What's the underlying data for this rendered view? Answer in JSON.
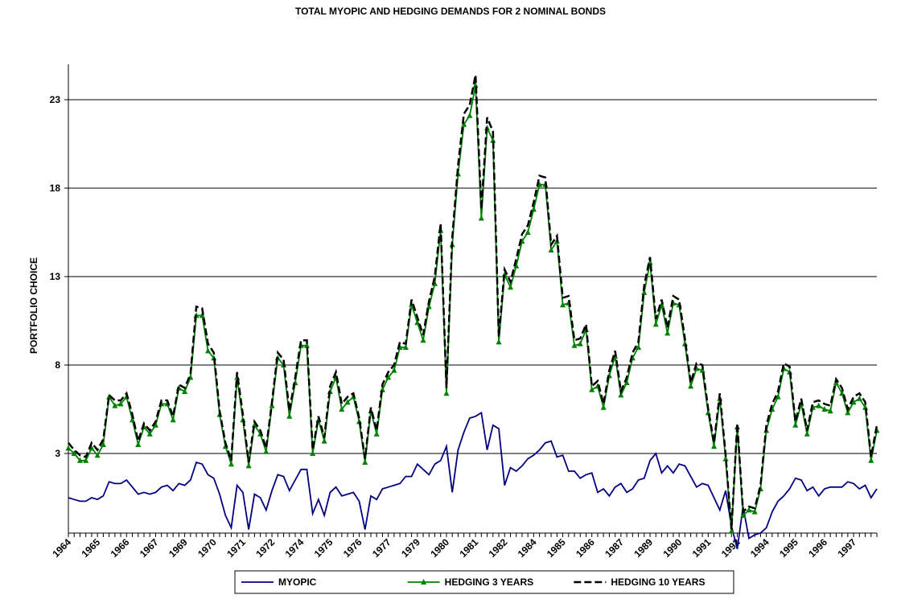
{
  "chart_data": {
    "type": "line",
    "title": "TOTAL MYOPIC AND HEDGING DEMANDS FOR 2 NOMINAL BONDS",
    "y_label": "PORTFOLIO CHOICE",
    "categories": [
      "1964",
      null,
      null,
      null,
      null,
      "1965",
      null,
      null,
      null,
      null,
      "1966",
      null,
      null,
      null,
      null,
      "1967",
      null,
      null,
      null,
      null,
      "1969",
      null,
      null,
      null,
      null,
      "1970",
      null,
      null,
      null,
      null,
      "1971",
      null,
      null,
      null,
      null,
      "1972",
      null,
      null,
      null,
      null,
      "1974",
      null,
      null,
      null,
      null,
      "1975",
      null,
      null,
      null,
      null,
      "1976",
      null,
      null,
      null,
      null,
      "1977",
      null,
      null,
      null,
      null,
      "1979",
      null,
      null,
      null,
      null,
      "1980",
      null,
      null,
      null,
      null,
      "1981",
      null,
      null,
      null,
      null,
      "1982",
      null,
      null,
      null,
      null,
      "1984",
      null,
      null,
      null,
      null,
      "1985",
      null,
      null,
      null,
      null,
      "1986",
      null,
      null,
      null,
      null,
      "1987",
      null,
      null,
      null,
      null,
      "1989",
      null,
      null,
      null,
      null,
      "1990",
      null,
      null,
      null,
      null,
      "1991",
      null,
      null,
      null,
      null,
      "1992",
      null,
      null,
      null,
      null,
      "1994",
      null,
      null,
      null,
      null,
      "1995",
      null,
      null,
      null,
      null,
      "1996",
      null,
      null,
      null,
      null,
      "1997",
      null,
      null,
      null,
      null
    ],
    "series": [
      {
        "name": "MYOPIC",
        "color": "#000080",
        "style": "solid",
        "values": [
          0.5,
          0.4,
          0.3,
          0.3,
          0.5,
          0.4,
          0.6,
          1.4,
          1.3,
          1.3,
          1.5,
          1.1,
          0.7,
          0.8,
          0.7,
          0.8,
          1.1,
          1.2,
          0.9,
          1.3,
          1.2,
          1.5,
          2.5,
          2.4,
          1.8,
          1.6,
          0.7,
          -0.5,
          -1.2,
          1.2,
          0.8,
          -1.3,
          0.7,
          0.5,
          -0.2,
          0.9,
          1.8,
          1.7,
          0.9,
          1.5,
          2.1,
          2.1,
          -0.4,
          0.4,
          -0.5,
          0.8,
          1.1,
          0.6,
          0.7,
          0.8,
          0.3,
          -1.3,
          0.6,
          0.4,
          1.0,
          1.1,
          1.2,
          1.3,
          1.7,
          1.7,
          2.4,
          2.1,
          1.8,
          2.4,
          2.6,
          3.4,
          0.8,
          3.2,
          4.2,
          5.0,
          5.1,
          5.3,
          3.2,
          4.6,
          4.4,
          1.2,
          2.2,
          2.0,
          2.3,
          2.7,
          2.9,
          3.2,
          3.6,
          3.7,
          2.8,
          2.9,
          2.0,
          2.0,
          1.6,
          1.8,
          1.9,
          0.8,
          1.0,
          0.6,
          1.1,
          1.3,
          0.8,
          1.0,
          1.5,
          1.6,
          2.6,
          3.0,
          1.9,
          2.3,
          1.9,
          2.4,
          2.3,
          1.7,
          1.1,
          1.3,
          1.2,
          0.5,
          -0.2,
          0.9,
          -1.1,
          -2.4,
          0.0,
          -1.8,
          -1.6,
          -1.5,
          -1.2,
          -0.3,
          0.3,
          0.6,
          1.0,
          1.6,
          1.5,
          0.9,
          1.1,
          0.6,
          1.0,
          1.1,
          1.1,
          1.1,
          1.4,
          1.3,
          1.0,
          1.2,
          0.5,
          1.0
        ]
      },
      {
        "name": "HEDGING 3 YEARS",
        "color": "#008000",
        "style": "solid",
        "marker": "triangle",
        "values": [
          3.3,
          3.0,
          2.6,
          2.6,
          3.3,
          2.9,
          3.5,
          6.2,
          5.7,
          5.8,
          6.2,
          4.9,
          3.5,
          4.5,
          4.1,
          4.6,
          5.8,
          5.8,
          4.9,
          6.7,
          6.5,
          7.3,
          10.8,
          10.8,
          8.8,
          8.4,
          5.2,
          3.4,
          2.4,
          7.3,
          4.9,
          2.3,
          4.6,
          4.1,
          3.1,
          5.7,
          8.4,
          8.0,
          5.1,
          7.0,
          9.1,
          9.1,
          3.0,
          4.9,
          3.7,
          6.5,
          7.3,
          5.5,
          5.9,
          6.2,
          4.8,
          2.5,
          5.4,
          4.1,
          6.6,
          7.3,
          7.7,
          9.0,
          9.0,
          11.4,
          10.4,
          9.4,
          11.3,
          12.6,
          15.6,
          6.4,
          14.8,
          18.8,
          21.6,
          22.1,
          23.8,
          16.3,
          21.4,
          20.7,
          9.3,
          13.1,
          12.4,
          13.6,
          15.0,
          15.5,
          16.8,
          18.2,
          18.2,
          14.5,
          15.0,
          11.4,
          11.5,
          9.1,
          9.2,
          10.0,
          6.6,
          6.8,
          5.6,
          7.4,
          8.5,
          6.3,
          7.0,
          8.4,
          9.0,
          12.1,
          13.8,
          10.3,
          11.4,
          9.8,
          11.5,
          11.4,
          9.2,
          6.8,
          7.8,
          7.7,
          5.3,
          3.4,
          6.1,
          2.7,
          -1.4,
          4.5,
          -0.5,
          -0.2,
          -0.3,
          1.0,
          4.3,
          5.5,
          6.2,
          7.8,
          7.6,
          4.6,
          5.8,
          4.1,
          5.6,
          5.7,
          5.5,
          5.4,
          7.0,
          6.4,
          5.3,
          5.9,
          6.1,
          5.6,
          2.6,
          4.3
        ]
      },
      {
        "name": "HEDGING 10 YEARS",
        "color": "#000000",
        "style": "dashed",
        "values": [
          3.6,
          3.2,
          2.9,
          2.8,
          3.6,
          3.2,
          3.8,
          6.3,
          6.0,
          6.0,
          6.4,
          5.2,
          3.7,
          4.7,
          4.3,
          4.8,
          6.0,
          6.0,
          5.1,
          6.9,
          6.7,
          7.5,
          11.3,
          11.2,
          9.2,
          8.7,
          5.4,
          3.6,
          2.6,
          7.6,
          5.2,
          2.5,
          4.8,
          4.3,
          3.3,
          5.9,
          8.7,
          8.3,
          5.4,
          7.3,
          9.4,
          9.4,
          3.2,
          5.1,
          3.9,
          6.8,
          7.6,
          5.8,
          6.2,
          6.4,
          5.0,
          2.7,
          5.6,
          4.3,
          6.9,
          7.6,
          8.0,
          9.3,
          9.2,
          11.7,
          10.7,
          9.7,
          11.6,
          13.0,
          16.0,
          6.7,
          15.2,
          19.3,
          22.2,
          22.7,
          24.4,
          16.8,
          22.0,
          21.2,
          9.6,
          13.4,
          12.7,
          14.0,
          15.4,
          15.9,
          17.2,
          18.7,
          18.6,
          14.8,
          15.3,
          11.8,
          11.9,
          9.4,
          9.5,
          10.3,
          6.8,
          7.1,
          5.8,
          7.7,
          8.8,
          6.5,
          7.3,
          8.7,
          9.3,
          12.5,
          14.1,
          10.6,
          11.7,
          10.1,
          11.9,
          11.7,
          9.5,
          7.0,
          8.1,
          8.0,
          5.5,
          3.6,
          6.4,
          2.9,
          -1.3,
          4.7,
          -0.3,
          0.0,
          -0.1,
          1.2,
          4.6,
          5.8,
          6.5,
          8.1,
          7.9,
          4.8,
          6.1,
          4.3,
          5.9,
          6.0,
          5.8,
          5.7,
          7.2,
          6.7,
          5.5,
          6.2,
          6.4,
          5.9,
          2.8,
          4.6
        ]
      }
    ],
    "ylim": [
      -2.5,
      25
    ],
    "yticks": [
      3,
      8,
      13,
      18,
      23
    ],
    "x_axis_at": -1.5,
    "grid": true,
    "legend": "bottom"
  }
}
